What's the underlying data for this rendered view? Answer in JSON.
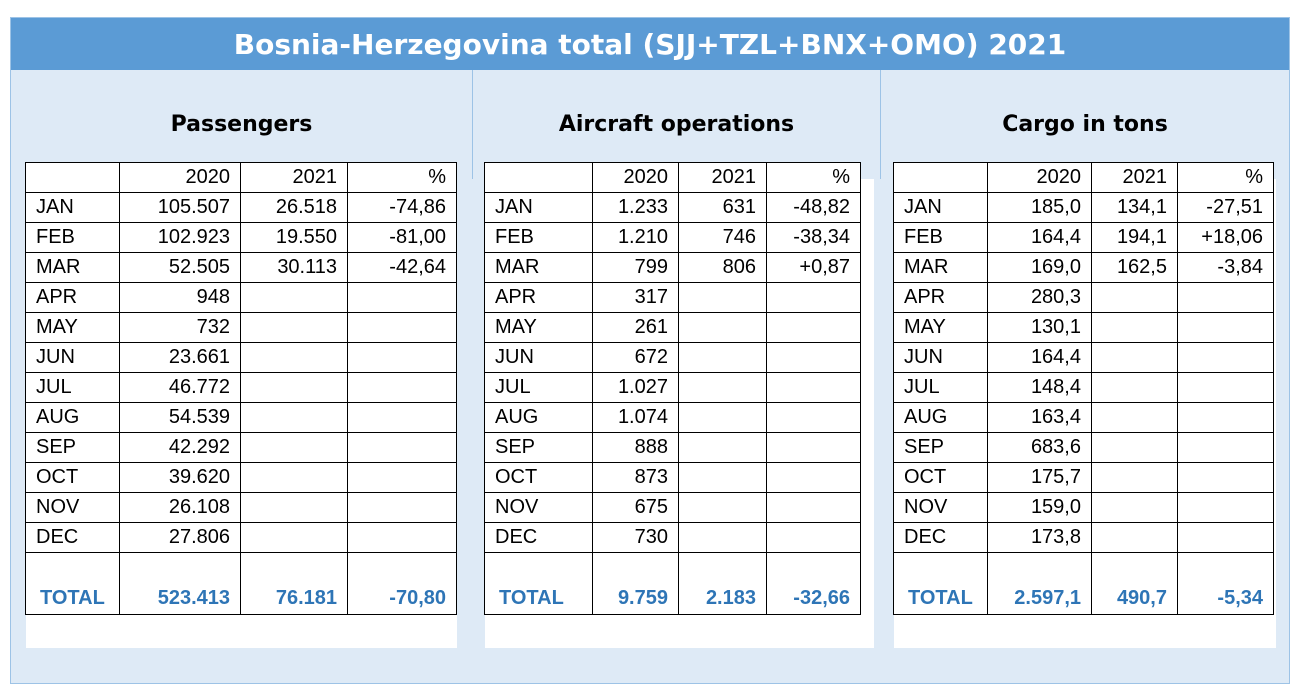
{
  "title": "Bosnia-Herzegovina total (SJJ+TZL+BNX+OMO) 2021",
  "header_cols": {
    "blank": "",
    "y2020": "2020",
    "y2021": "2021",
    "pct": "%"
  },
  "total_label": "TOTAL",
  "sections": [
    {
      "heading": "Passengers",
      "rows": [
        {
          "m": "JAN",
          "a": "105.507",
          "b": "26.518",
          "p": "-74,86"
        },
        {
          "m": "FEB",
          "a": "102.923",
          "b": "19.550",
          "p": "-81,00"
        },
        {
          "m": "MAR",
          "a": "52.505",
          "b": "30.113",
          "p": "-42,64"
        },
        {
          "m": "APR",
          "a": "948",
          "b": "",
          "p": ""
        },
        {
          "m": "MAY",
          "a": "732",
          "b": "",
          "p": ""
        },
        {
          "m": "JUN",
          "a": "23.661",
          "b": "",
          "p": ""
        },
        {
          "m": "JUL",
          "a": "46.772",
          "b": "",
          "p": ""
        },
        {
          "m": "AUG",
          "a": "54.539",
          "b": "",
          "p": ""
        },
        {
          "m": "SEP",
          "a": "42.292",
          "b": "",
          "p": ""
        },
        {
          "m": "OCT",
          "a": "39.620",
          "b": "",
          "p": ""
        },
        {
          "m": "NOV",
          "a": "26.108",
          "b": "",
          "p": ""
        },
        {
          "m": "DEC",
          "a": "27.806",
          "b": "",
          "p": ""
        }
      ],
      "total": {
        "a": "523.413",
        "b": "76.181",
        "p": "-70,80"
      }
    },
    {
      "heading": "Aircraft operations",
      "rows": [
        {
          "m": "JAN",
          "a": "1.233",
          "b": "631",
          "p": "-48,82"
        },
        {
          "m": "FEB",
          "a": "1.210",
          "b": "746",
          "p": "-38,34"
        },
        {
          "m": "MAR",
          "a": "799",
          "b": "806",
          "p": "+0,87"
        },
        {
          "m": "APR",
          "a": "317",
          "b": "",
          "p": ""
        },
        {
          "m": "MAY",
          "a": "261",
          "b": "",
          "p": ""
        },
        {
          "m": "JUN",
          "a": "672",
          "b": "",
          "p": ""
        },
        {
          "m": "JUL",
          "a": "1.027",
          "b": "",
          "p": ""
        },
        {
          "m": "AUG",
          "a": "1.074",
          "b": "",
          "p": ""
        },
        {
          "m": "SEP",
          "a": "888",
          "b": "",
          "p": ""
        },
        {
          "m": "OCT",
          "a": "873",
          "b": "",
          "p": ""
        },
        {
          "m": "NOV",
          "a": "675",
          "b": "",
          "p": ""
        },
        {
          "m": "DEC",
          "a": "730",
          "b": "",
          "p": ""
        }
      ],
      "total": {
        "a": "9.759",
        "b": "2.183",
        "p": "-32,66"
      }
    },
    {
      "heading": "Cargo in tons",
      "rows": [
        {
          "m": "JAN",
          "a": "185,0",
          "b": "134,1",
          "p": "-27,51"
        },
        {
          "m": "FEB",
          "a": "164,4",
          "b": "194,1",
          "p": "+18,06"
        },
        {
          "m": "MAR",
          "a": "169,0",
          "b": "162,5",
          "p": "-3,84"
        },
        {
          "m": "APR",
          "a": "280,3",
          "b": "",
          "p": ""
        },
        {
          "m": "MAY",
          "a": "130,1",
          "b": "",
          "p": ""
        },
        {
          "m": "JUN",
          "a": "164,4",
          "b": "",
          "p": ""
        },
        {
          "m": "JUL",
          "a": "148,4",
          "b": "",
          "p": ""
        },
        {
          "m": "AUG",
          "a": "163,4",
          "b": "",
          "p": ""
        },
        {
          "m": "SEP",
          "a": "683,6",
          "b": "",
          "p": ""
        },
        {
          "m": "OCT",
          "a": "175,7",
          "b": "",
          "p": ""
        },
        {
          "m": "NOV",
          "a": "159,0",
          "b": "",
          "p": ""
        },
        {
          "m": "DEC",
          "a": "173,8",
          "b": "",
          "p": ""
        }
      ],
      "total": {
        "a": "2.597,1",
        "b": "490,7",
        "p": "-5,34"
      }
    }
  ]
}
